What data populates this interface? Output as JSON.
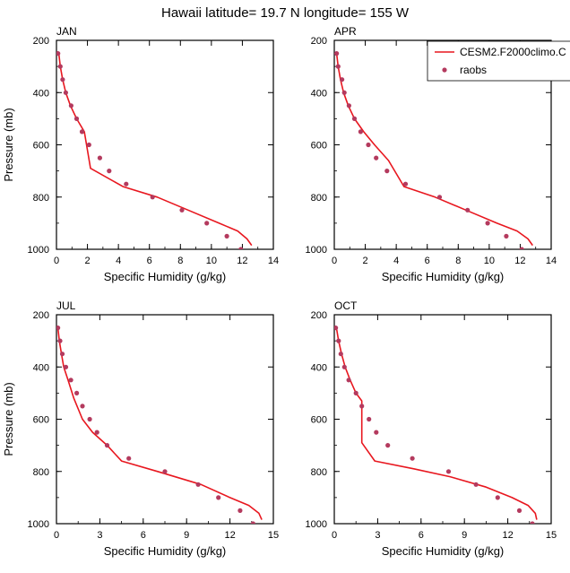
{
  "figure_title": "Hawaii  latitude= 19.7 N longitude= 155 W",
  "colors": {
    "model": "#e8171f",
    "obs": "#b43a5e",
    "axis": "#000000"
  },
  "legend": {
    "model_label": "CESM2.F2000climo.C",
    "obs_label": "raobs"
  },
  "chart_data": [
    {
      "type": "line",
      "panel": "JAN",
      "title": "JAN",
      "xlabel": "Specific Humidity (g/kg)",
      "ylabel": "Pressure (mb)",
      "xlim": [
        0,
        14
      ],
      "ylim": [
        200,
        1000
      ],
      "y_inverted": true,
      "xticks": [
        0,
        2,
        4,
        6,
        8,
        10,
        12,
        14
      ],
      "yticks": [
        200,
        400,
        600,
        800,
        1000
      ],
      "series": [
        {
          "name": "CESM2.F2000climo.C",
          "kind": "line",
          "x": [
            0.15,
            0.25,
            0.4,
            0.6,
            0.9,
            1.3,
            1.8,
            2.2,
            4.3,
            6.5,
            8.5,
            10.5,
            11.7,
            12.3,
            12.6
          ],
          "y": [
            250,
            300,
            350,
            400,
            450,
            500,
            550,
            690,
            760,
            800,
            850,
            900,
            930,
            960,
            985
          ]
        },
        {
          "name": "raobs",
          "kind": "scatter",
          "x": [
            0.1,
            0.25,
            0.4,
            0.6,
            0.95,
            1.3,
            1.65,
            2.1,
            2.8,
            3.4,
            4.5,
            6.2,
            8.1,
            9.7,
            11.0,
            11.9
          ],
          "y": [
            250,
            300,
            350,
            400,
            450,
            500,
            550,
            600,
            650,
            700,
            750,
            800,
            850,
            900,
            950,
            1000
          ]
        }
      ]
    },
    {
      "type": "line",
      "panel": "APR",
      "title": "APR",
      "xlabel": "Specific Humidity (g/kg)",
      "ylabel": "",
      "xlim": [
        0,
        14
      ],
      "ylim": [
        200,
        1000
      ],
      "y_inverted": true,
      "xticks": [
        0,
        2,
        4,
        6,
        8,
        10,
        12,
        14
      ],
      "yticks": [
        200,
        400,
        600,
        800,
        1000
      ],
      "series": [
        {
          "name": "CESM2.F2000climo.C",
          "kind": "line",
          "x": [
            0.15,
            0.25,
            0.4,
            0.6,
            0.9,
            1.3,
            1.9,
            2.6,
            3.5,
            4.5,
            6.5,
            8.5,
            10.5,
            11.8,
            12.5,
            12.8
          ],
          "y": [
            250,
            300,
            350,
            400,
            450,
            500,
            550,
            600,
            660,
            760,
            800,
            850,
            900,
            930,
            960,
            985
          ]
        },
        {
          "name": "raobs",
          "kind": "scatter",
          "x": [
            0.15,
            0.25,
            0.5,
            0.65,
            0.95,
            1.3,
            1.7,
            2.2,
            2.7,
            3.4,
            4.6,
            6.8,
            8.6,
            9.9,
            11.1,
            12.1
          ],
          "y": [
            250,
            300,
            350,
            400,
            450,
            500,
            550,
            600,
            650,
            700,
            750,
            800,
            850,
            900,
            950,
            1000
          ]
        }
      ]
    },
    {
      "type": "line",
      "panel": "JUL",
      "title": "JUL",
      "xlabel": "Specific Humidity (g/kg)",
      "ylabel": "Pressure (mb)",
      "xlim": [
        0,
        15
      ],
      "ylim": [
        200,
        1000
      ],
      "y_inverted": true,
      "xticks": [
        0,
        3,
        6,
        9,
        12,
        15
      ],
      "yticks": [
        200,
        400,
        600,
        800,
        1000
      ],
      "series": [
        {
          "name": "CESM2.F2000climo.C",
          "kind": "line",
          "x": [
            0.1,
            0.2,
            0.35,
            0.5,
            0.8,
            1.2,
            1.8,
            2.5,
            3.5,
            4.5,
            7.0,
            10.0,
            12.0,
            13.3,
            14.0,
            14.2
          ],
          "y": [
            250,
            300,
            350,
            400,
            450,
            520,
            600,
            650,
            700,
            760,
            800,
            850,
            900,
            930,
            960,
            985
          ]
        },
        {
          "name": "raobs",
          "kind": "scatter",
          "x": [
            0.1,
            0.25,
            0.4,
            0.65,
            1.0,
            1.4,
            1.8,
            2.3,
            2.8,
            3.5,
            5.0,
            7.5,
            9.8,
            11.2,
            12.7,
            13.6
          ],
          "y": [
            250,
            300,
            350,
            400,
            450,
            500,
            550,
            600,
            650,
            700,
            750,
            800,
            850,
            900,
            950,
            1000
          ]
        }
      ]
    },
    {
      "type": "line",
      "panel": "OCT",
      "title": "OCT",
      "xlabel": "Specific Humidity (g/kg)",
      "ylabel": "",
      "xlim": [
        0,
        15
      ],
      "ylim": [
        200,
        1000
      ],
      "y_inverted": true,
      "xticks": [
        0,
        3,
        6,
        9,
        12,
        15
      ],
      "yticks": [
        200,
        400,
        600,
        800,
        1000
      ],
      "series": [
        {
          "name": "CESM2.F2000climo.C",
          "kind": "line",
          "x": [
            0.15,
            0.3,
            0.5,
            0.75,
            1.1,
            1.5,
            1.9,
            1.9,
            2.8,
            5.5,
            8.0,
            10.5,
            12.3,
            13.4,
            13.9,
            14.0
          ],
          "y": [
            250,
            300,
            350,
            400,
            450,
            500,
            530,
            690,
            760,
            790,
            820,
            860,
            900,
            930,
            960,
            985
          ]
        },
        {
          "name": "raobs",
          "kind": "scatter",
          "x": [
            0.1,
            0.3,
            0.45,
            0.7,
            1.0,
            1.5,
            1.9,
            2.4,
            2.9,
            3.7,
            5.4,
            7.9,
            9.8,
            11.3,
            12.8,
            13.7
          ],
          "y": [
            250,
            300,
            350,
            400,
            450,
            500,
            550,
            600,
            650,
            700,
            750,
            800,
            850,
            900,
            950,
            1000
          ]
        }
      ]
    }
  ]
}
